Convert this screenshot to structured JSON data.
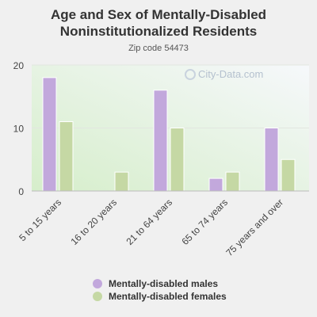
{
  "title": "Age and Sex of Mentally-Disabled Noninstitutionalized Residents",
  "subtitle": "Zip code 54473",
  "watermark": "City-Data.com",
  "colors": {
    "males": "#c2a8dc",
    "females": "#c5d8a4",
    "background": "#f0f0f0"
  },
  "chart_data": {
    "type": "bar",
    "categories": [
      "5 to 15 years",
      "16 to 20 years",
      "21 to 64 years",
      "65 to 74 years",
      "75 years and over"
    ],
    "series": [
      {
        "name": "Mentally-disabled males",
        "values": [
          18,
          0,
          16,
          2,
          10
        ]
      },
      {
        "name": "Mentally-disabled females",
        "values": [
          11,
          3,
          10,
          3,
          5
        ]
      }
    ],
    "yticks": [
      0,
      10,
      20
    ],
    "ylim": [
      0,
      20
    ],
    "grid": true,
    "legend_position": "bottom"
  },
  "legend": [
    {
      "label": "Mentally-disabled males"
    },
    {
      "label": "Mentally-disabled females"
    }
  ]
}
